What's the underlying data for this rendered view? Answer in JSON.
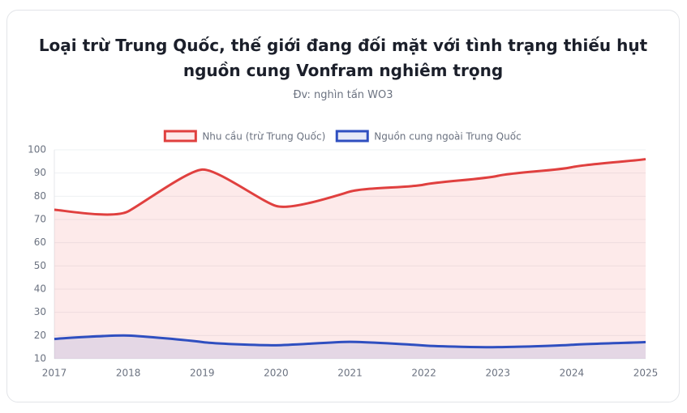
{
  "chart_data": {
    "type": "line",
    "title": "Loại trừ Trung Quốc, thế giới đang đối mặt với tình trạng thiếu hụt nguồn cung Vonfram nghiêm trọng",
    "subtitle": "Đv: nghìn tấn WO3",
    "categories": [
      "2017",
      "2018",
      "2019",
      "2020",
      "2021",
      "2022",
      "2023",
      "2024",
      "2025"
    ],
    "series": [
      {
        "name": "Nhu cầu (trừ Trung Quốc)",
        "color": "#e0403f",
        "fill": "rgba(240,80,80,0.12)",
        "values": [
          74.2,
          73.5,
          91.5,
          75.8,
          82,
          85,
          88.8,
          92.5,
          96
        ]
      },
      {
        "name": "Nguồn cung ngoài Trung Quốc",
        "color": "#2f4fc0",
        "fill": "rgba(80,100,200,0.14)",
        "values": [
          18.5,
          20,
          17.2,
          15.8,
          17.3,
          15.7,
          15,
          16,
          17.2
        ]
      }
    ],
    "ylim": [
      10,
      100
    ],
    "yticks": [
      10,
      20,
      30,
      40,
      50,
      60,
      70,
      80,
      90,
      100
    ],
    "grid": true,
    "area": true,
    "legend": "top"
  }
}
